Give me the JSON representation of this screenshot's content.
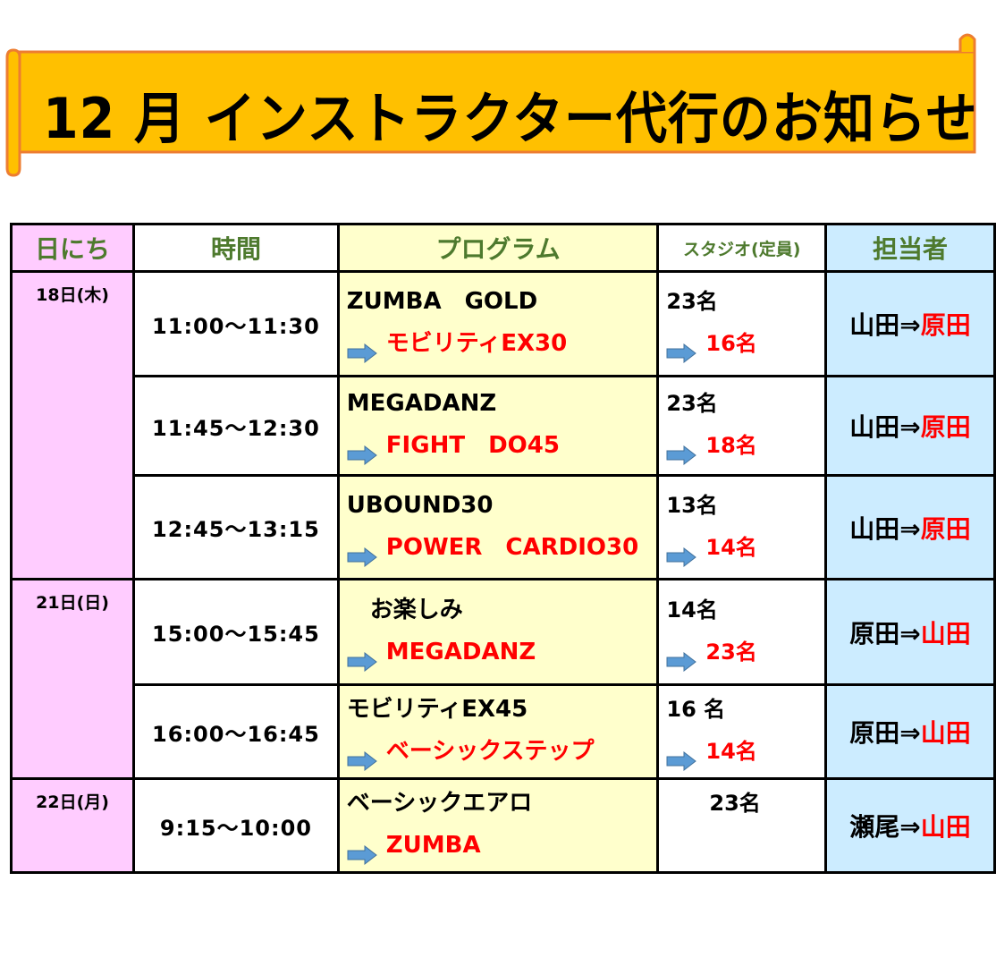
{
  "banner": {
    "title": "12 月 インストラクター代行のお知らせ",
    "fill": "#FFC000",
    "stroke": "#ED7D31"
  },
  "table": {
    "headers": [
      "日にち",
      "時間",
      "プログラム",
      "スタジオ(定員)",
      "担当者"
    ],
    "groups": [
      {
        "date": "18日(木)",
        "rows": [
          {
            "time": "11:00〜11:30",
            "program_from": "ZUMBA　GOLD",
            "program_to": "モビリティEX30",
            "capacity_from": "23名",
            "capacity_to": "16名",
            "instructor_from": "山田⇒",
            "instructor_to": "原田"
          },
          {
            "time": "11:45〜12:30",
            "program_from": "MEGADANZ",
            "program_to": "FIGHT　DO45",
            "capacity_from": "23名",
            "capacity_to": "18名",
            "instructor_from": "山田⇒",
            "instructor_to": "原田"
          },
          {
            "time": "12:45〜13:15",
            "program_from": "UBOUND30",
            "program_to": "POWER　CARDIO30",
            "capacity_from": "13名",
            "capacity_to": "14名",
            "instructor_from": "山田⇒",
            "instructor_to": "原田"
          }
        ]
      },
      {
        "date": "21日(日)",
        "rows": [
          {
            "time": "15:00〜15:45",
            "program_from": "　お楽しみ",
            "program_to": "MEGADANZ",
            "capacity_from": "14名",
            "capacity_to": "23名",
            "instructor_from": "原田⇒",
            "instructor_to": "山田"
          },
          {
            "time": "16:00〜16:45",
            "program_from": "モビリティEX45",
            "program_to": "ベーシックステップ",
            "capacity_from": "16 名",
            "capacity_to": "14名",
            "instructor_from": "原田⇒",
            "instructor_to": "山田"
          }
        ]
      },
      {
        "date": "22日(月)",
        "rows": [
          {
            "time": "9:15〜10:00",
            "program_from": "ベーシックエアロ",
            "program_to": "ZUMBA",
            "capacity_from": "　　23名",
            "capacity_to": null,
            "instructor_from": "瀬尾⇒",
            "instructor_to": "山田"
          }
        ]
      }
    ]
  },
  "icons": {
    "arrow": "right-arrow-icon",
    "arrow_color": "#5B9BD5"
  }
}
